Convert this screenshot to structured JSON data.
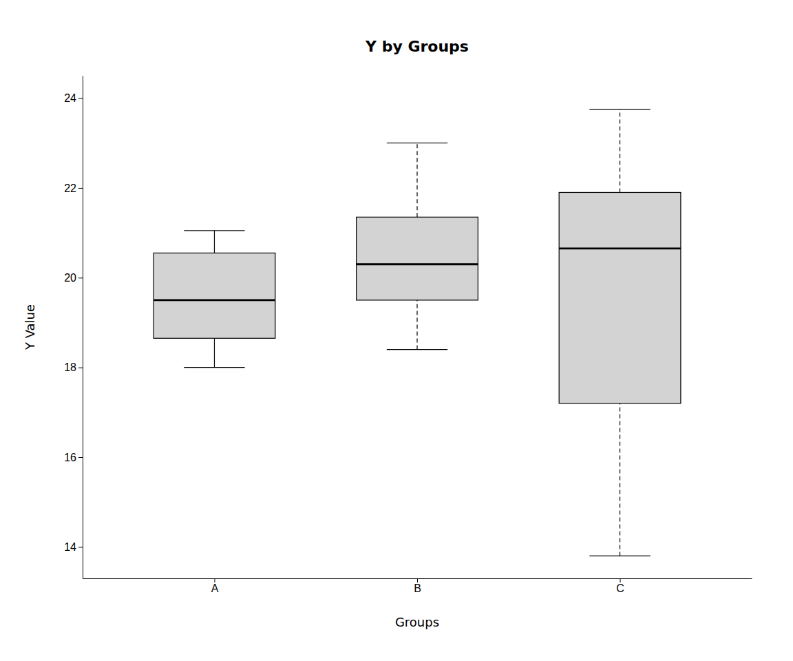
{
  "chart_data": {
    "type": "box",
    "title": "Y by Groups",
    "xlabel": "Groups",
    "ylabel": "Y Value",
    "categories": [
      "A",
      "B",
      "C"
    ],
    "boxes": [
      {
        "whislo": 18.0,
        "q1": 18.65,
        "med": 19.5,
        "q3": 20.55,
        "whishi": 21.05,
        "line_style": "solid"
      },
      {
        "whislo": 18.4,
        "q1": 19.5,
        "med": 20.3,
        "q3": 21.35,
        "whishi": 23.0,
        "line_style": "dashed"
      },
      {
        "whislo": 13.8,
        "q1": 17.2,
        "med": 20.65,
        "q3": 21.9,
        "whishi": 23.75,
        "line_style": "dashed"
      }
    ],
    "color": "#d3d3d3",
    "ylim": [
      13.3,
      24.5
    ],
    "yticks": [
      14,
      16,
      18,
      20,
      22,
      24
    ],
    "grid": false
  }
}
